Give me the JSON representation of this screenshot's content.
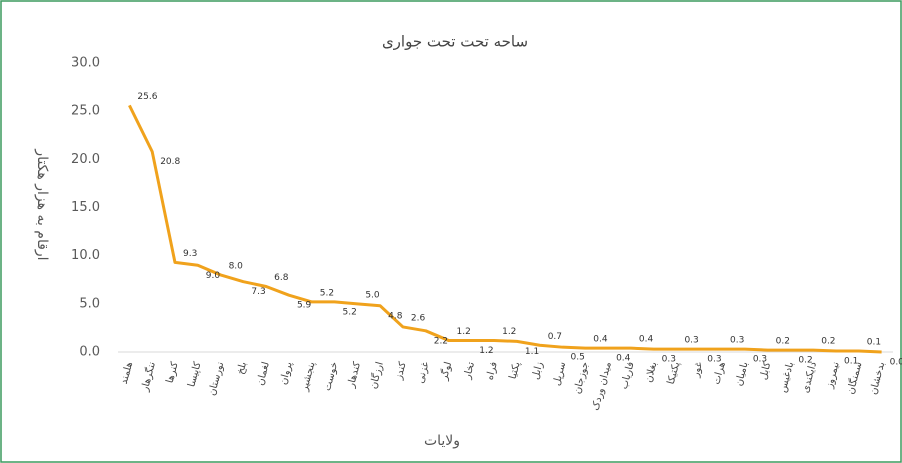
{
  "chart_data": {
    "type": "line",
    "title": "ساحه تحت تحت جواری",
    "y_label": "ارقام به هزار هکتار",
    "x_label": "ولایات",
    "categories": [
      "هلمند",
      "ننگرهار",
      "کنرها",
      "کاپیسا",
      "نورستان",
      "بلخ",
      "لغمان",
      "پروان",
      "پنجشیر",
      "خوست",
      "کندهار",
      "ارزگان",
      "کندز",
      "غزنی",
      "لوگر",
      "تخار",
      "فراه",
      "پکتیا",
      "زابل",
      "سرپل",
      "جوزجان",
      "میدان وردک",
      "فاریاب",
      "بغلان",
      "پکتیکا",
      "غور",
      "هرات",
      "بامیان",
      "کابل",
      "بادغیس",
      "دایکندی",
      "نیمروز",
      "سمنگان",
      "بدخشان"
    ],
    "values": [
      25.6,
      20.8,
      9.3,
      9.0,
      8.0,
      7.3,
      6.8,
      5.9,
      5.2,
      5.2,
      5.0,
      4.8,
      2.6,
      2.2,
      1.2,
      1.2,
      1.2,
      1.1,
      0.7,
      0.5,
      0.4,
      0.4,
      0.4,
      0.3,
      0.3,
      0.3,
      0.3,
      0.3,
      0.2,
      0.2,
      0.2,
      0.1,
      0.1,
      0.0
    ],
    "value_labels": [
      "25.6",
      "20.8",
      "9.3",
      "9.0",
      "8.0",
      "7.3",
      "6.8",
      "5.9",
      "5.2",
      "5.2",
      "5.0",
      "4.8",
      "2.6",
      "2.2",
      "1.2",
      "1.2",
      "1.2",
      "1.1",
      "0.7",
      "0.5",
      "0.4",
      "0.4",
      "0.4",
      "0.3",
      "0.3",
      "0.3",
      "0.3",
      "0.3",
      "0.2",
      "0.2",
      "0.2",
      "0.1",
      "0.1",
      "0.0"
    ],
    "color": "#f0a21c",
    "ylim": [
      0,
      30
    ],
    "yticks": [
      {
        "value": 0,
        "label": "0.0"
      },
      {
        "value": 5,
        "label": "5.0"
      },
      {
        "value": 10,
        "label": "10.0"
      },
      {
        "value": 15,
        "label": "15.0"
      },
      {
        "value": 20,
        "label": "20.0"
      },
      {
        "value": 25,
        "label": "25.0"
      },
      {
        "value": 30,
        "label": "30.0"
      }
    ],
    "grid": false
  }
}
